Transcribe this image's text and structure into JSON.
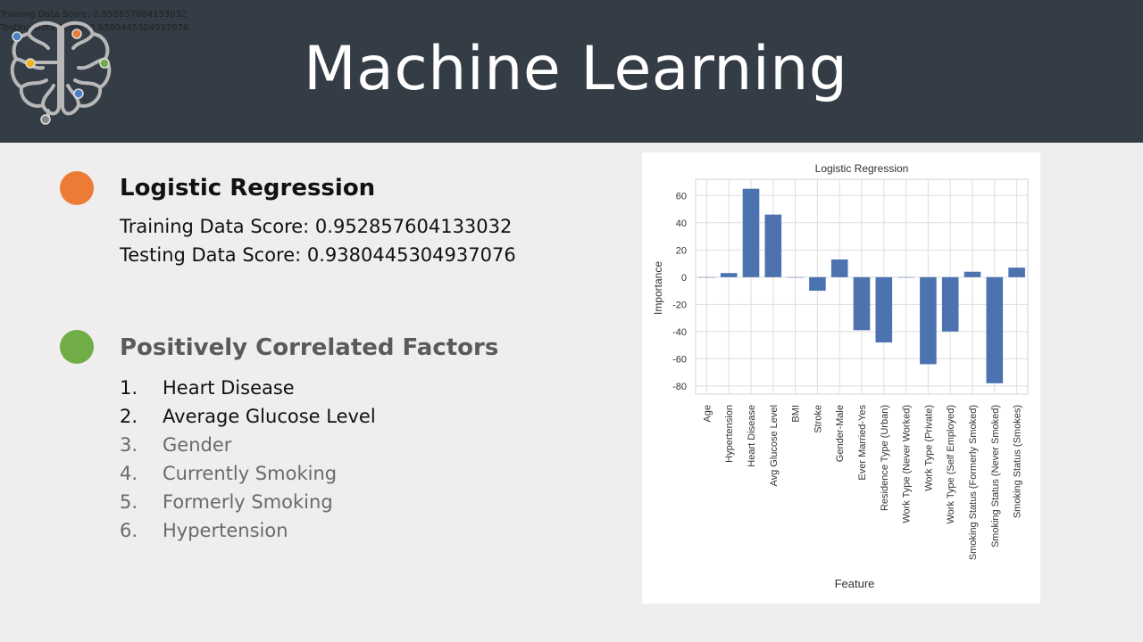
{
  "overlay": {
    "line1": "Training Data Score: 0.952857604133032",
    "line2": "Testing Data Score: 0.9380445304937076"
  },
  "header": {
    "title": "Machine Learning",
    "logo_icon": "brain-circuit-icon"
  },
  "colors": {
    "header_bg": "#343c46",
    "orange": "#ec7c35",
    "green": "#70ad47",
    "bar": "#4c72b0"
  },
  "section1": {
    "title": "Logistic Regression",
    "training_score": "Training Data Score: 0.952857604133032",
    "testing_score": "Testing Data Score: 0.9380445304937076"
  },
  "section2": {
    "title": "Positively Correlated Factors",
    "items": [
      {
        "num": "1.",
        "label": "Heart Disease"
      },
      {
        "num": "2.",
        "label": "Average Glucose Level"
      },
      {
        "num": "3.",
        "label": "Gender"
      },
      {
        "num": "4.",
        "label": "Currently Smoking"
      },
      {
        "num": "5.",
        "label": "Formerly Smoking"
      },
      {
        "num": "6.",
        "label": "Hypertension"
      }
    ]
  },
  "chart_data": {
    "type": "bar",
    "title": "Logistic Regression",
    "xlabel": "Feature",
    "ylabel": "Importance",
    "ylim": [
      -86,
      72
    ],
    "yticks": [
      60,
      40,
      20,
      0,
      -20,
      -40,
      -60,
      -80
    ],
    "grid": true,
    "categories": [
      "Age",
      "Hypertension",
      "Heart Disease",
      "Avg Glucose Level",
      "BMI",
      "Stroke",
      "Gender-Male",
      "Ever Married-Yes",
      "Residence Type (Urban)",
      "Work Type (Never Worked)",
      "Work Type (Private)",
      "Work Type (Self Employed)",
      "Smoking Status (Formerly Smoked)",
      "Smoking Status (Never Smoked)",
      "Smoking Status (Smokes)"
    ],
    "values": [
      0,
      3,
      65,
      46,
      0,
      -10,
      13,
      -39,
      -48,
      0,
      -64,
      -40,
      4,
      -78,
      7
    ]
  }
}
